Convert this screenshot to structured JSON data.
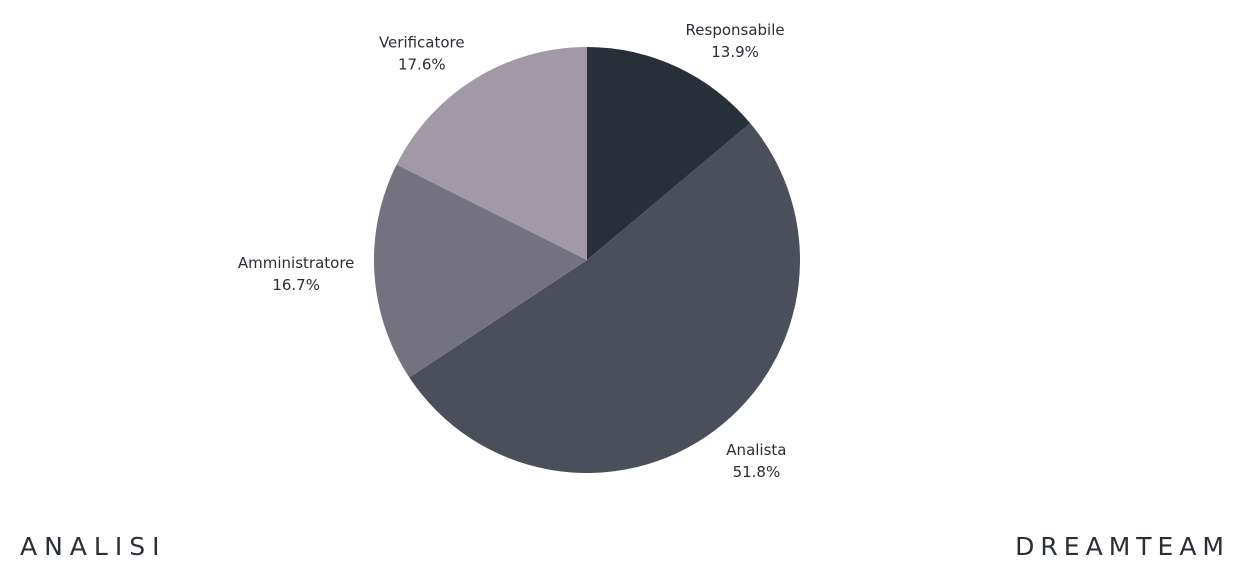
{
  "chart_data": {
    "type": "pie",
    "start_angle": "top",
    "direction": "clockwise",
    "slices": [
      {
        "label": "Responsabile",
        "value": 13.9,
        "value_label": "13.9%",
        "color": "#282f39"
      },
      {
        "label": "Analista",
        "value": 51.8,
        "value_label": "51.8%",
        "color": "#4b4f5b"
      },
      {
        "label": "Amministratore",
        "value": 16.7,
        "value_label": "16.7%",
        "color": "#75727f"
      },
      {
        "label": "Verificatore",
        "value": 17.6,
        "value_label": "17.6%",
        "color": "#a199a5"
      }
    ]
  },
  "footer": {
    "left": "ANALISI",
    "right": "DREAMTEAM"
  }
}
